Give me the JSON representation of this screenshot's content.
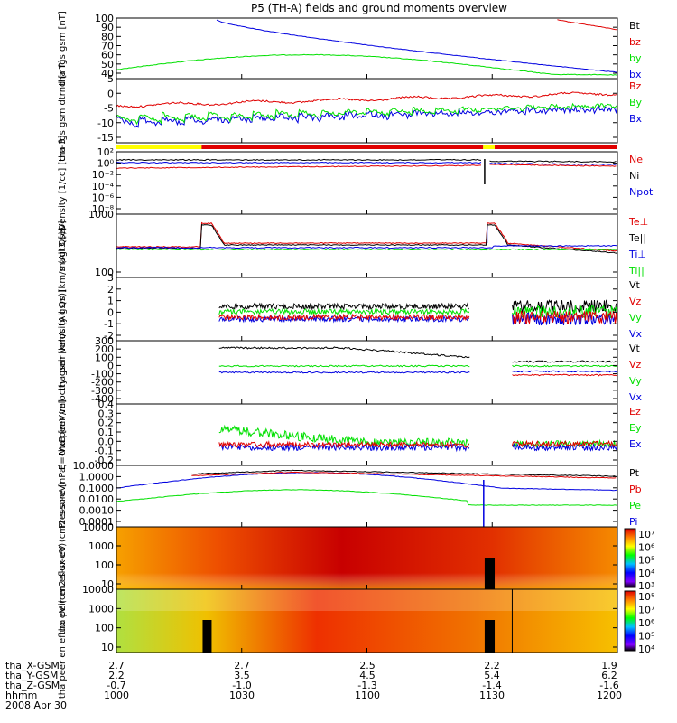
{
  "title": "P5 (TH-A) fields and ground moments overview",
  "date_label": "2008 Apr 30",
  "colors": {
    "black": "#000000",
    "red": "#e00000",
    "green": "#00e000",
    "blue": "#0000e0",
    "yellow": "#ffff00"
  },
  "chart_data": [
    {
      "type": "line",
      "id": "fgs_gsm_total",
      "ylabel": "tha fgs gsm [nT]",
      "ylim": [
        40,
        100
      ],
      "yticks": [
        "100",
        "90",
        "80",
        "70",
        "60",
        "50",
        "40"
      ],
      "series": [
        {
          "name": "Bt",
          "color": "#000000"
        },
        {
          "name": "bz",
          "color": "#e00000"
        },
        {
          "name": "by",
          "color": "#00e000"
        },
        {
          "name": "bx",
          "color": "#0000e0"
        }
      ]
    },
    {
      "type": "line",
      "id": "fgs_gsm_dtrnd",
      "ylabel": "tha fgs gsm dtrnd [nT]",
      "ylim": [
        -18,
        6
      ],
      "yticks": [
        "5",
        "0",
        "-5",
        "-10",
        "-15"
      ],
      "series": [
        {
          "name": "Bz",
          "color": "#e00000"
        },
        {
          "name": "By",
          "color": "#00e000"
        },
        {
          "name": "Bx",
          "color": "#0000e0"
        }
      ]
    },
    {
      "type": "line",
      "id": "density",
      "ylabel": "Density [1/cc] [cm-3]",
      "log": true,
      "yticks": [
        "10²",
        "10⁰",
        "10⁻²",
        "10⁻⁴",
        "10⁻⁶",
        "10⁻⁸"
      ],
      "series": [
        {
          "name": "Ne",
          "color": "#e00000"
        },
        {
          "name": "Ni",
          "color": "#000000"
        },
        {
          "name": "Npot",
          "color": "#0000e0"
        }
      ]
    },
    {
      "type": "line",
      "id": "temperature",
      "ylabel": "magt3 [eV]",
      "log": true,
      "yticks": [
        "1000",
        "100"
      ],
      "series": [
        {
          "name": "Te⊥",
          "color": "#e00000"
        },
        {
          "name": "Te||",
          "color": "#000000"
        },
        {
          "name": "Ti⊥",
          "color": "#0000e0"
        },
        {
          "name": "Ti||",
          "color": "#00e000"
        }
      ]
    },
    {
      "type": "line",
      "id": "peir_velocity",
      "ylabel": "tha peir velocity gsm [km/s (All Qs)]",
      "ylim": [
        -2,
        3
      ],
      "yticks": [
        "3",
        "2",
        "1",
        "0",
        "-1",
        "-2"
      ],
      "series": [
        {
          "name": "Vt",
          "color": "#000000"
        },
        {
          "name": "Vz",
          "color": "#e00000"
        },
        {
          "name": "Vy",
          "color": "#00e000"
        },
        {
          "name": "Vx",
          "color": "#0000e0"
        }
      ]
    },
    {
      "type": "line",
      "id": "peer_velocity",
      "ylabel": "tha peer velocity gsm [km/s (All Qs)]",
      "ylim": [
        -400,
        300
      ],
      "yticks": [
        "300",
        "200",
        "100",
        "0",
        "-100",
        "-200",
        "-300",
        "-400"
      ],
      "series": [
        {
          "name": "Vt",
          "color": "#000000"
        },
        {
          "name": "Vz",
          "color": "#e00000"
        },
        {
          "name": "Vy",
          "color": "#00e000"
        },
        {
          "name": "Vx",
          "color": "#0000e0"
        }
      ]
    },
    {
      "type": "line",
      "id": "efield",
      "ylabel": "E=-VxB [mV/m]",
      "ylim": [
        -0.2,
        0.4
      ],
      "yticks": [
        "0.4",
        "0.3",
        "0.2",
        "0.1",
        "0.0",
        "-0.1",
        "-0.2"
      ],
      "series": [
        {
          "name": "Ez",
          "color": "#e00000"
        },
        {
          "name": "Ey",
          "color": "#00e000"
        },
        {
          "name": "Ex",
          "color": "#0000e0"
        }
      ]
    },
    {
      "type": "line",
      "id": "pressure",
      "ylabel": "Pressure [nPa]",
      "log": true,
      "yticks": [
        "10.0000",
        "1.0000",
        "0.1000",
        "0.0100",
        "0.0010",
        "0.0001"
      ],
      "series": [
        {
          "name": "Pt",
          "color": "#000000"
        },
        {
          "name": "Pb",
          "color": "#e00000"
        },
        {
          "name": "Pe",
          "color": "#00e000"
        },
        {
          "name": "Pi",
          "color": "#0000e0"
        }
      ]
    },
    {
      "type": "heatmap",
      "id": "peir_spectrogram",
      "ylabel": "tha peir en eflux eV (cm2-s-sr-eV)",
      "log": true,
      "yticks": [
        "10000",
        "1000",
        "100",
        "10"
      ],
      "colorbar": [
        "10⁷",
        "10⁶",
        "10⁵",
        "10⁴",
        "10³"
      ]
    },
    {
      "type": "heatmap",
      "id": "peer_spectrogram",
      "ylabel": "tha peer en eflux eV (cm2-s-sr-eV)",
      "log": true,
      "yticks": [
        "10000",
        "1000",
        "100",
        "10"
      ],
      "colorbar": [
        "10⁸",
        "10⁷",
        "10⁶",
        "10⁵",
        "10⁴"
      ]
    }
  ],
  "x_axis": {
    "row_labels": [
      "tha_X-GSM",
      "tha_Y-GSM",
      "tha_Z-GSM",
      "hhmm"
    ],
    "columns": [
      {
        "x": "2.7",
        "y": "2.2",
        "z": "-0.7",
        "t": "1000"
      },
      {
        "x": "2.7",
        "y": "3.5",
        "z": "-1.0",
        "t": "1030"
      },
      {
        "x": "2.5",
        "y": "4.5",
        "z": "-1.3",
        "t": "1100"
      },
      {
        "x": "2.2",
        "y": "5.4",
        "z": "-1.4",
        "t": "1130"
      },
      {
        "x": "1.9",
        "y": "6.2",
        "z": "-1.6",
        "t": "1200"
      }
    ]
  }
}
